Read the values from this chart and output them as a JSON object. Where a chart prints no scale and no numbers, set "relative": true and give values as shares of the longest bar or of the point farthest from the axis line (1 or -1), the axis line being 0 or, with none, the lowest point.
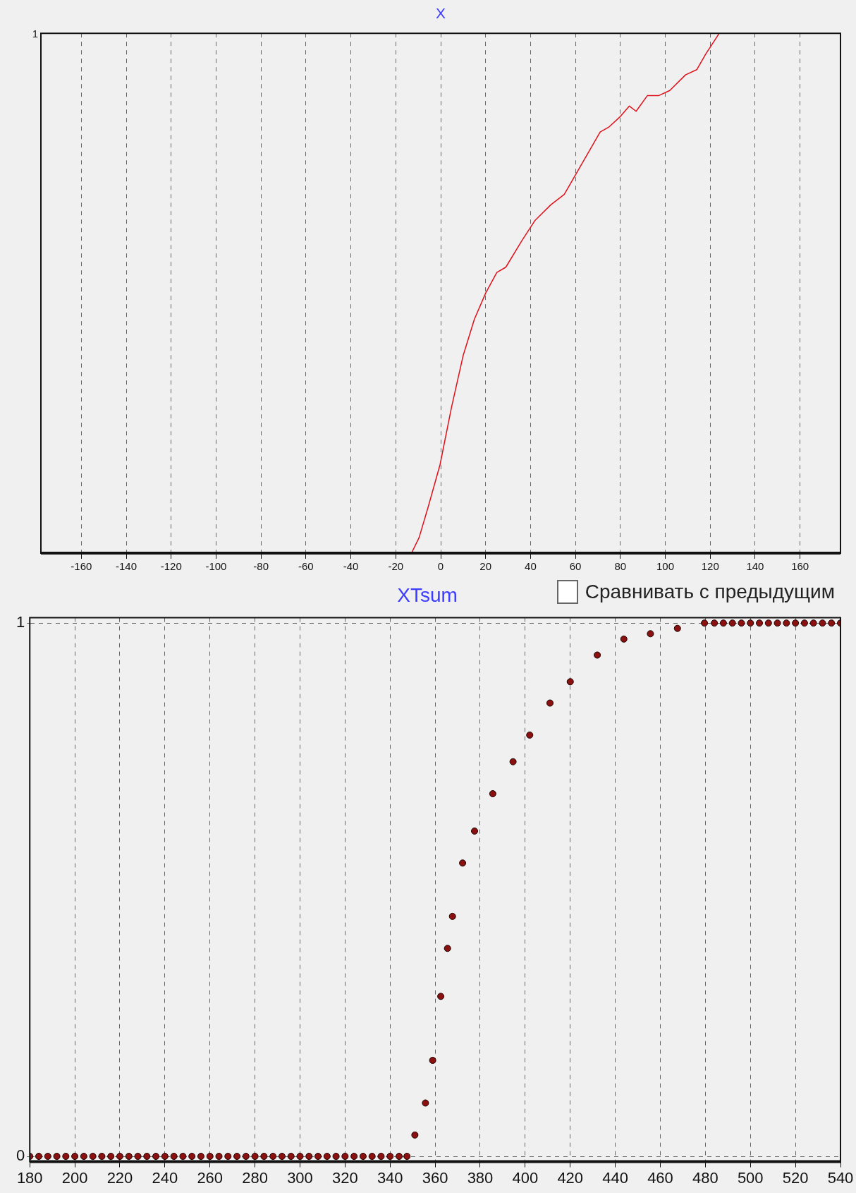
{
  "chart_data": [
    {
      "type": "line",
      "title": "X",
      "relative": true,
      "grid": "x",
      "marker": "none",
      "line_style": "solid",
      "xlim": [
        -178,
        178
      ],
      "xticks": [
        -160,
        -140,
        -120,
        -100,
        -80,
        -60,
        -40,
        -20,
        0,
        20,
        40,
        60,
        80,
        100,
        120,
        140,
        160
      ],
      "annotations": [
        "1"
      ],
      "series": [
        {
          "color": "#e0101a",
          "x": [
            -13,
            -9.6,
            -5.5,
            -0.3,
            4.8,
            10,
            15,
            20,
            25,
            29,
            36,
            42,
            49,
            55,
            63,
            71,
            75,
            80,
            84,
            87,
            92,
            97,
            102,
            109,
            114,
            118,
            124
          ],
          "values": [
            0,
            0.03,
            0.09,
            0.17,
            0.28,
            0.38,
            0.45,
            0.5,
            0.54,
            0.55,
            0.6,
            0.64,
            0.67,
            0.69,
            0.75,
            0.81,
            0.82,
            0.84,
            0.86,
            0.85,
            0.88,
            0.88,
            0.89,
            0.92,
            0.93,
            0.96,
            1
          ]
        }
      ]
    },
    {
      "type": "scatter",
      "title": "XTsum",
      "grid": true,
      "marker": "circle",
      "xlim": [
        180,
        540
      ],
      "xticks": [
        180,
        200,
        220,
        240,
        260,
        280,
        300,
        320,
        340,
        360,
        380,
        400,
        420,
        440,
        460,
        480,
        500,
        520,
        540
      ],
      "ylim": [
        -0.01,
        1.01
      ],
      "yticks": [
        0,
        1
      ],
      "annotations": [
        "Сравнивать с предыдущим"
      ],
      "series": [
        {
          "color": "#8b1010",
          "x": [
            180,
            184,
            188,
            192,
            196,
            200,
            204,
            208,
            212,
            216,
            220,
            224,
            228,
            232,
            236,
            240,
            244,
            248,
            252,
            256,
            260,
            264,
            268,
            272,
            276,
            280,
            284,
            288,
            292,
            296,
            300,
            304,
            308,
            312,
            316,
            320,
            324,
            328,
            332,
            336,
            340,
            344,
            347.5,
            351,
            355.7,
            358.9,
            362.5,
            365.5,
            367.7,
            372.2,
            377.5,
            385.6,
            394.6,
            402,
            411,
            420,
            432,
            443.8,
            455.6,
            467.6,
            479.6,
            484,
            488,
            492,
            496,
            500,
            504,
            508,
            512,
            516,
            520,
            524,
            528,
            532,
            536,
            540
          ],
          "values": [
            0,
            0,
            0,
            0,
            0,
            0,
            0,
            0,
            0,
            0,
            0,
            0,
            0,
            0,
            0,
            0,
            0,
            0,
            0,
            0,
            0,
            0,
            0,
            0,
            0,
            0,
            0,
            0,
            0,
            0,
            0,
            0,
            0,
            0,
            0,
            0,
            0,
            0,
            0,
            0,
            0,
            0,
            0,
            0.04,
            0.1,
            0.18,
            0.3,
            0.39,
            0.45,
            0.55,
            0.61,
            0.68,
            0.74,
            0.79,
            0.85,
            0.89,
            0.94,
            0.97,
            0.98,
            0.99,
            1,
            1,
            1,
            1,
            1,
            1,
            1,
            1,
            1,
            1,
            1,
            1,
            1,
            1,
            1,
            1
          ]
        }
      ]
    }
  ]
}
